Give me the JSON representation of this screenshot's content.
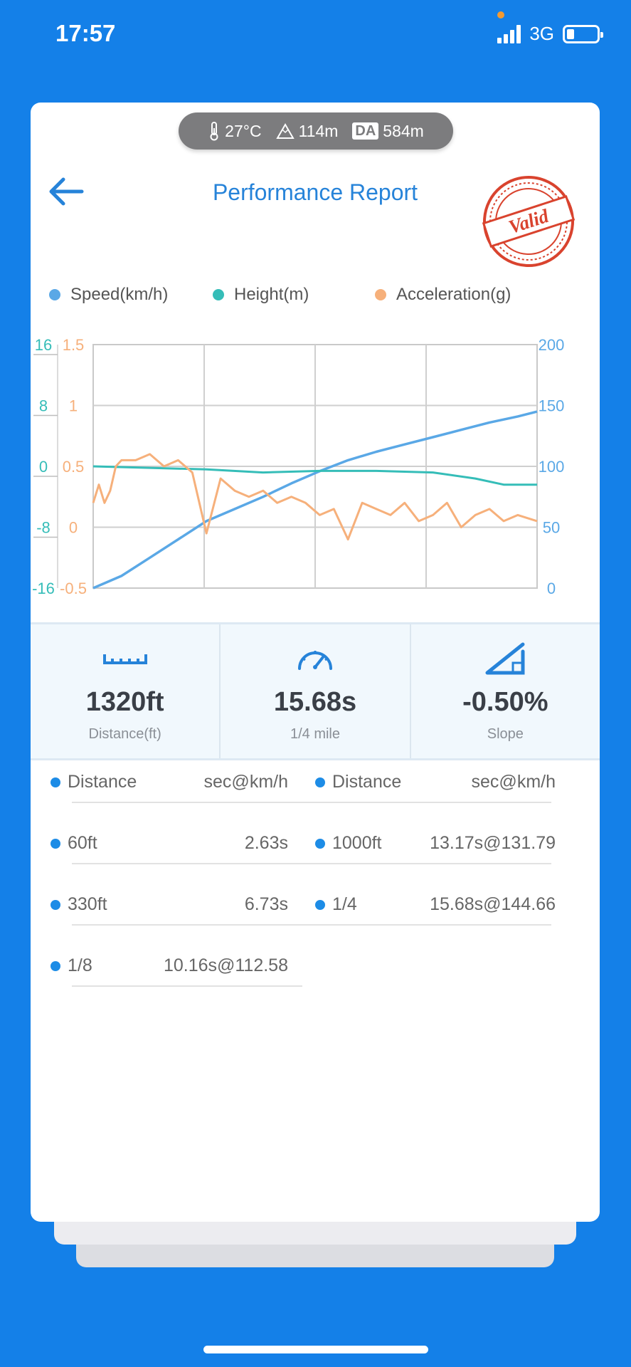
{
  "status_bar": {
    "time": "17:57",
    "network": "3G"
  },
  "conditions": {
    "temperature": "27°C",
    "altitude": "114m",
    "da_label": "DA",
    "density_altitude": "584m"
  },
  "header": {
    "title": "Performance Report",
    "stamp_text": "Valid"
  },
  "legend": [
    {
      "label": "Speed(km/h)",
      "color": "#5aa8e6"
    },
    {
      "label": "Height(m)",
      "color": "#35bdb8"
    },
    {
      "label": "Acceleration(g)",
      "color": "#f6b07b"
    }
  ],
  "chart_data": {
    "type": "line",
    "y_axes": {
      "height": {
        "ticks": [
          "16",
          "8",
          "0",
          "-8",
          "-16"
        ],
        "range": [
          -16,
          16
        ],
        "color": "#35bdb8"
      },
      "acceleration": {
        "ticks": [
          "1.5",
          "1",
          "0.5",
          "0",
          "-0.5"
        ],
        "range": [
          -0.5,
          1.5
        ],
        "color": "#f6b07b"
      },
      "speed": {
        "ticks": [
          "200",
          "150",
          "100",
          "50",
          "0"
        ],
        "range": [
          0,
          200
        ],
        "color": "#5aa8e6"
      }
    },
    "x_range": [
      0,
      15.68
    ],
    "grid": true,
    "series": [
      {
        "name": "Speed(km/h)",
        "axis": "speed",
        "color": "#5aa8e6",
        "x": [
          0,
          1,
          2,
          3,
          4,
          5,
          6,
          7,
          8,
          9,
          10,
          11,
          12,
          13,
          14,
          15,
          15.68
        ],
        "y": [
          0,
          10,
          25,
          40,
          55,
          65,
          75,
          86,
          96,
          105,
          112,
          118,
          124,
          130,
          136,
          141,
          145
        ]
      },
      {
        "name": "Height(m)",
        "axis": "height",
        "color": "#35bdb8",
        "x": [
          0,
          2,
          4,
          6,
          8,
          10,
          12,
          13.5,
          14.5,
          15.68
        ],
        "y": [
          0,
          -0.2,
          -0.4,
          -0.8,
          -0.6,
          -0.6,
          -0.8,
          -1.6,
          -2.4,
          -2.4
        ]
      },
      {
        "name": "Acceleration(g)",
        "axis": "acceleration",
        "color": "#f6b07b",
        "x": [
          0,
          0.2,
          0.4,
          0.6,
          0.8,
          1,
          1.5,
          2,
          2.5,
          3,
          3.5,
          4,
          4.5,
          5,
          5.5,
          6,
          6.5,
          7,
          7.5,
          8,
          8.5,
          9,
          9.5,
          10,
          10.5,
          11,
          11.5,
          12,
          12.5,
          13,
          13.5,
          14,
          14.5,
          15,
          15.68
        ],
        "y": [
          0.2,
          0.35,
          0.2,
          0.3,
          0.5,
          0.55,
          0.55,
          0.6,
          0.5,
          0.55,
          0.45,
          -0.05,
          0.4,
          0.3,
          0.25,
          0.3,
          0.2,
          0.25,
          0.2,
          0.1,
          0.15,
          -0.1,
          0.2,
          0.15,
          0.1,
          0.2,
          0.05,
          0.1,
          0.2,
          0.0,
          0.1,
          0.15,
          0.05,
          0.1,
          0.05
        ]
      }
    ]
  },
  "stats": [
    {
      "icon": "ruler-icon",
      "value": "1320ft",
      "label": "Distance(ft)"
    },
    {
      "icon": "speedometer-icon",
      "value": "15.68s",
      "label": "1/4 mile"
    },
    {
      "icon": "slope-icon",
      "value": "-0.50%",
      "label": "Slope"
    }
  ],
  "splits": {
    "left": [
      {
        "name": "Distance",
        "time": "sec@km/h"
      },
      {
        "name": "60ft",
        "time": "2.63s"
      },
      {
        "name": "330ft",
        "time": "6.73s"
      },
      {
        "name": "1/8",
        "time": "10.16s@112.58"
      }
    ],
    "right": [
      {
        "name": "Distance",
        "time": "sec@km/h"
      },
      {
        "name": "1000ft",
        "time": "13.17s@131.79"
      },
      {
        "name": "1/4",
        "time": "15.68s@144.66"
      }
    ]
  },
  "colors": {
    "background": "#1480e8",
    "accent": "#2683d9",
    "stamp": "#d9432e",
    "bullet": "#1d8ce6"
  }
}
